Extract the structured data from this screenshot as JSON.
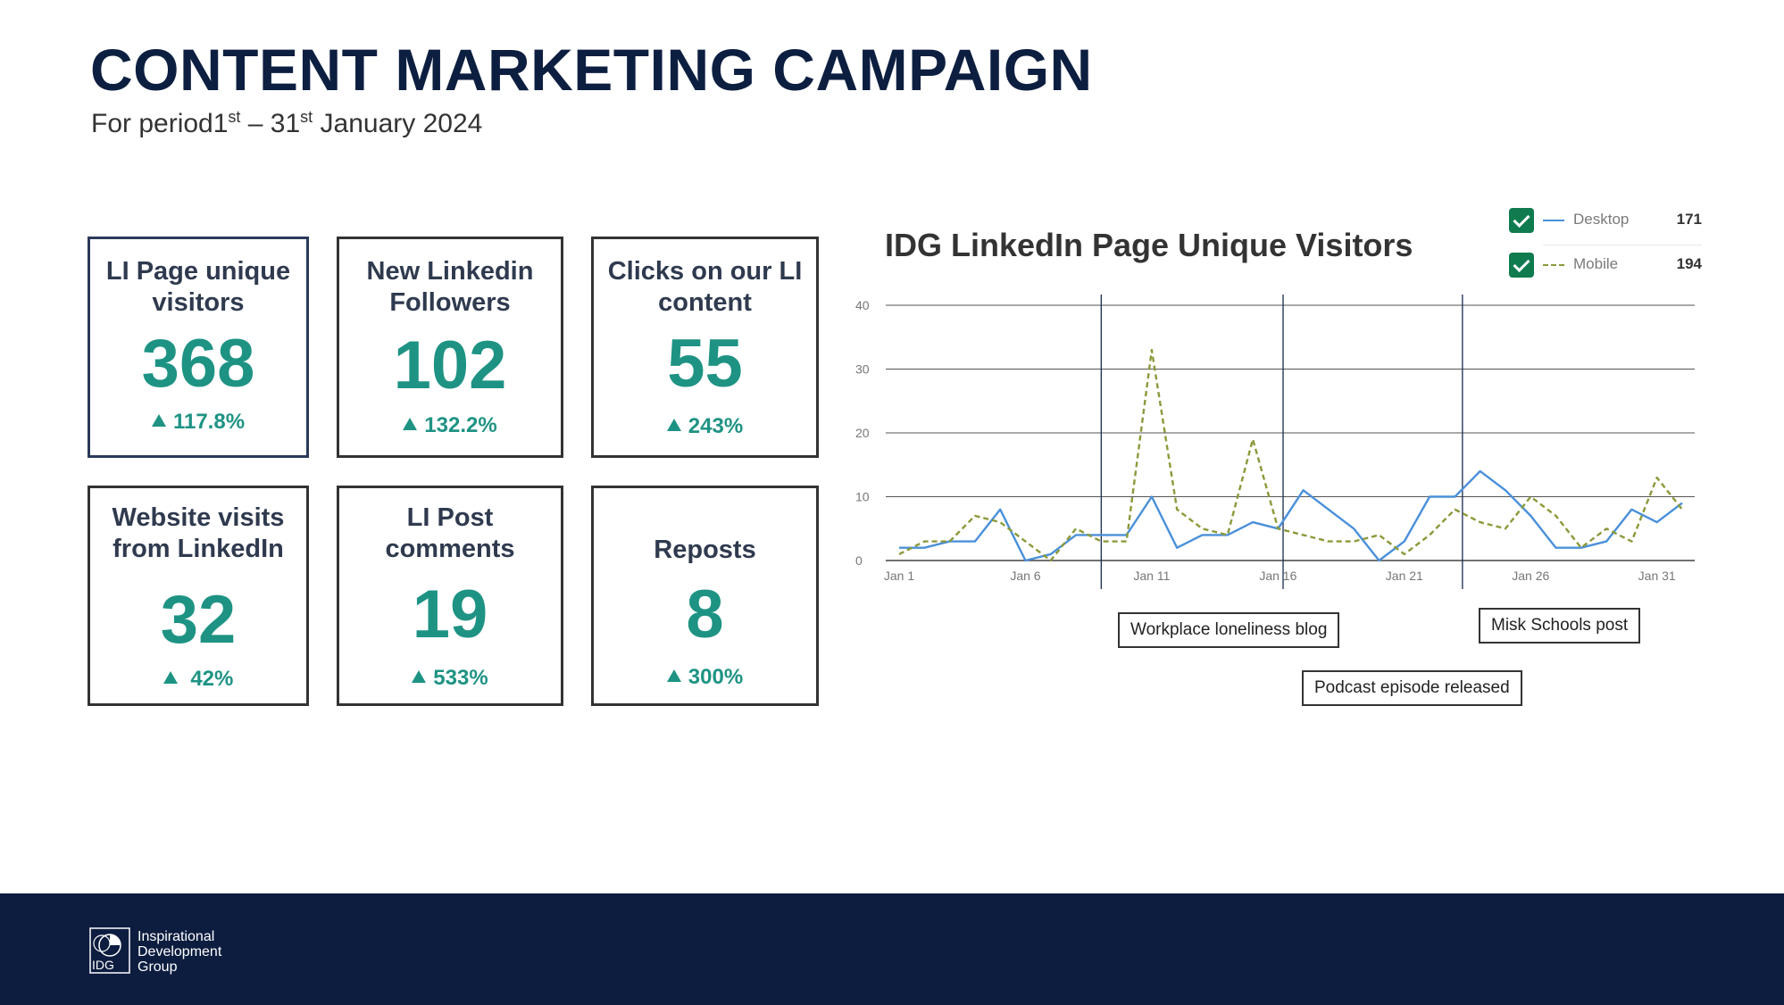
{
  "header": {
    "title": "CONTENT MARKETING CAMPAIGN",
    "subtitle_pre": "For period1",
    "subtitle_sup1": "st",
    "subtitle_mid": " – 31",
    "subtitle_sup2": "st",
    "subtitle_post": " January 2024"
  },
  "kpis": [
    {
      "label_line1": "LI Page unique",
      "label_line2": "visitors",
      "value": "368",
      "change": "117.8%"
    },
    {
      "label_line1": "New Linkedin",
      "label_line2": "Followers",
      "value": "102",
      "change": "132.2%"
    },
    {
      "label_line1": "Clicks on our LI",
      "label_line2": "content",
      "value": "55",
      "change": "243%"
    },
    {
      "label_line1": "Website visits",
      "label_line2": "from LinkedIn",
      "value": "32",
      "change": "42%"
    },
    {
      "label_line1": "LI Post",
      "label_line2": "comments",
      "value": "19",
      "change": "533%"
    },
    {
      "label_line1": "Reposts",
      "label_line2": "",
      "value": "8",
      "change": "300%"
    }
  ],
  "colors": {
    "accent": "#1e9384",
    "navy": "#0d1d40",
    "desktop": "#4a90d9",
    "mobile": "#8a9a3a",
    "checkbox": "#0f7b4f"
  },
  "chart_data": {
    "type": "line",
    "title": "IDG LinkedIn Page Unique Visitors",
    "x": [
      1,
      2,
      3,
      4,
      5,
      6,
      7,
      8,
      9,
      10,
      11,
      12,
      13,
      14,
      15,
      16,
      17,
      18,
      19,
      20,
      21,
      22,
      23,
      24,
      25,
      26,
      27,
      28,
      29,
      30,
      31,
      32
    ],
    "x_tick_labels": [
      "Jan 1",
      "Jan 6",
      "Jan 11",
      "Jan 16",
      "Jan 21",
      "Jan 26",
      "Jan 31"
    ],
    "x_tick_values": [
      1,
      6,
      11,
      16,
      21,
      26,
      31
    ],
    "ylim": [
      0,
      40
    ],
    "y_ticks": [
      "0",
      "10",
      "20",
      "30",
      "40"
    ],
    "y_tick_values": [
      0,
      10,
      20,
      30,
      40
    ],
    "grid": true,
    "legend_position": "top-right",
    "series": [
      {
        "name": "Desktop",
        "total": "171",
        "style": "solid",
        "values": [
          2,
          2,
          3,
          3,
          8,
          0,
          1,
          4,
          4,
          4,
          10,
          2,
          4,
          4,
          6,
          5,
          11,
          8,
          5,
          0,
          3,
          10,
          10,
          14,
          11,
          7,
          2,
          2,
          3,
          8,
          6,
          9
        ]
      },
      {
        "name": "Mobile",
        "total": "194",
        "style": "dashed",
        "values": [
          1,
          3,
          3,
          7,
          6,
          3,
          0,
          5,
          3,
          3,
          33,
          8,
          5,
          4,
          19,
          5,
          4,
          3,
          3,
          4,
          1,
          4,
          8,
          6,
          5,
          10,
          7,
          2,
          5,
          3,
          13,
          8
        ]
      }
    ],
    "annotations": [
      {
        "x": 9.0,
        "label": "Workplace loneliness blog"
      },
      {
        "x": 16.2,
        "label": "Podcast episode released"
      },
      {
        "x": 23.3,
        "label": "Misk Schools post"
      }
    ]
  },
  "footer": {
    "logo_abbr": "IDG",
    "logo_line1": "Inspirational",
    "logo_line2": "Development",
    "logo_line3": "Group"
  }
}
